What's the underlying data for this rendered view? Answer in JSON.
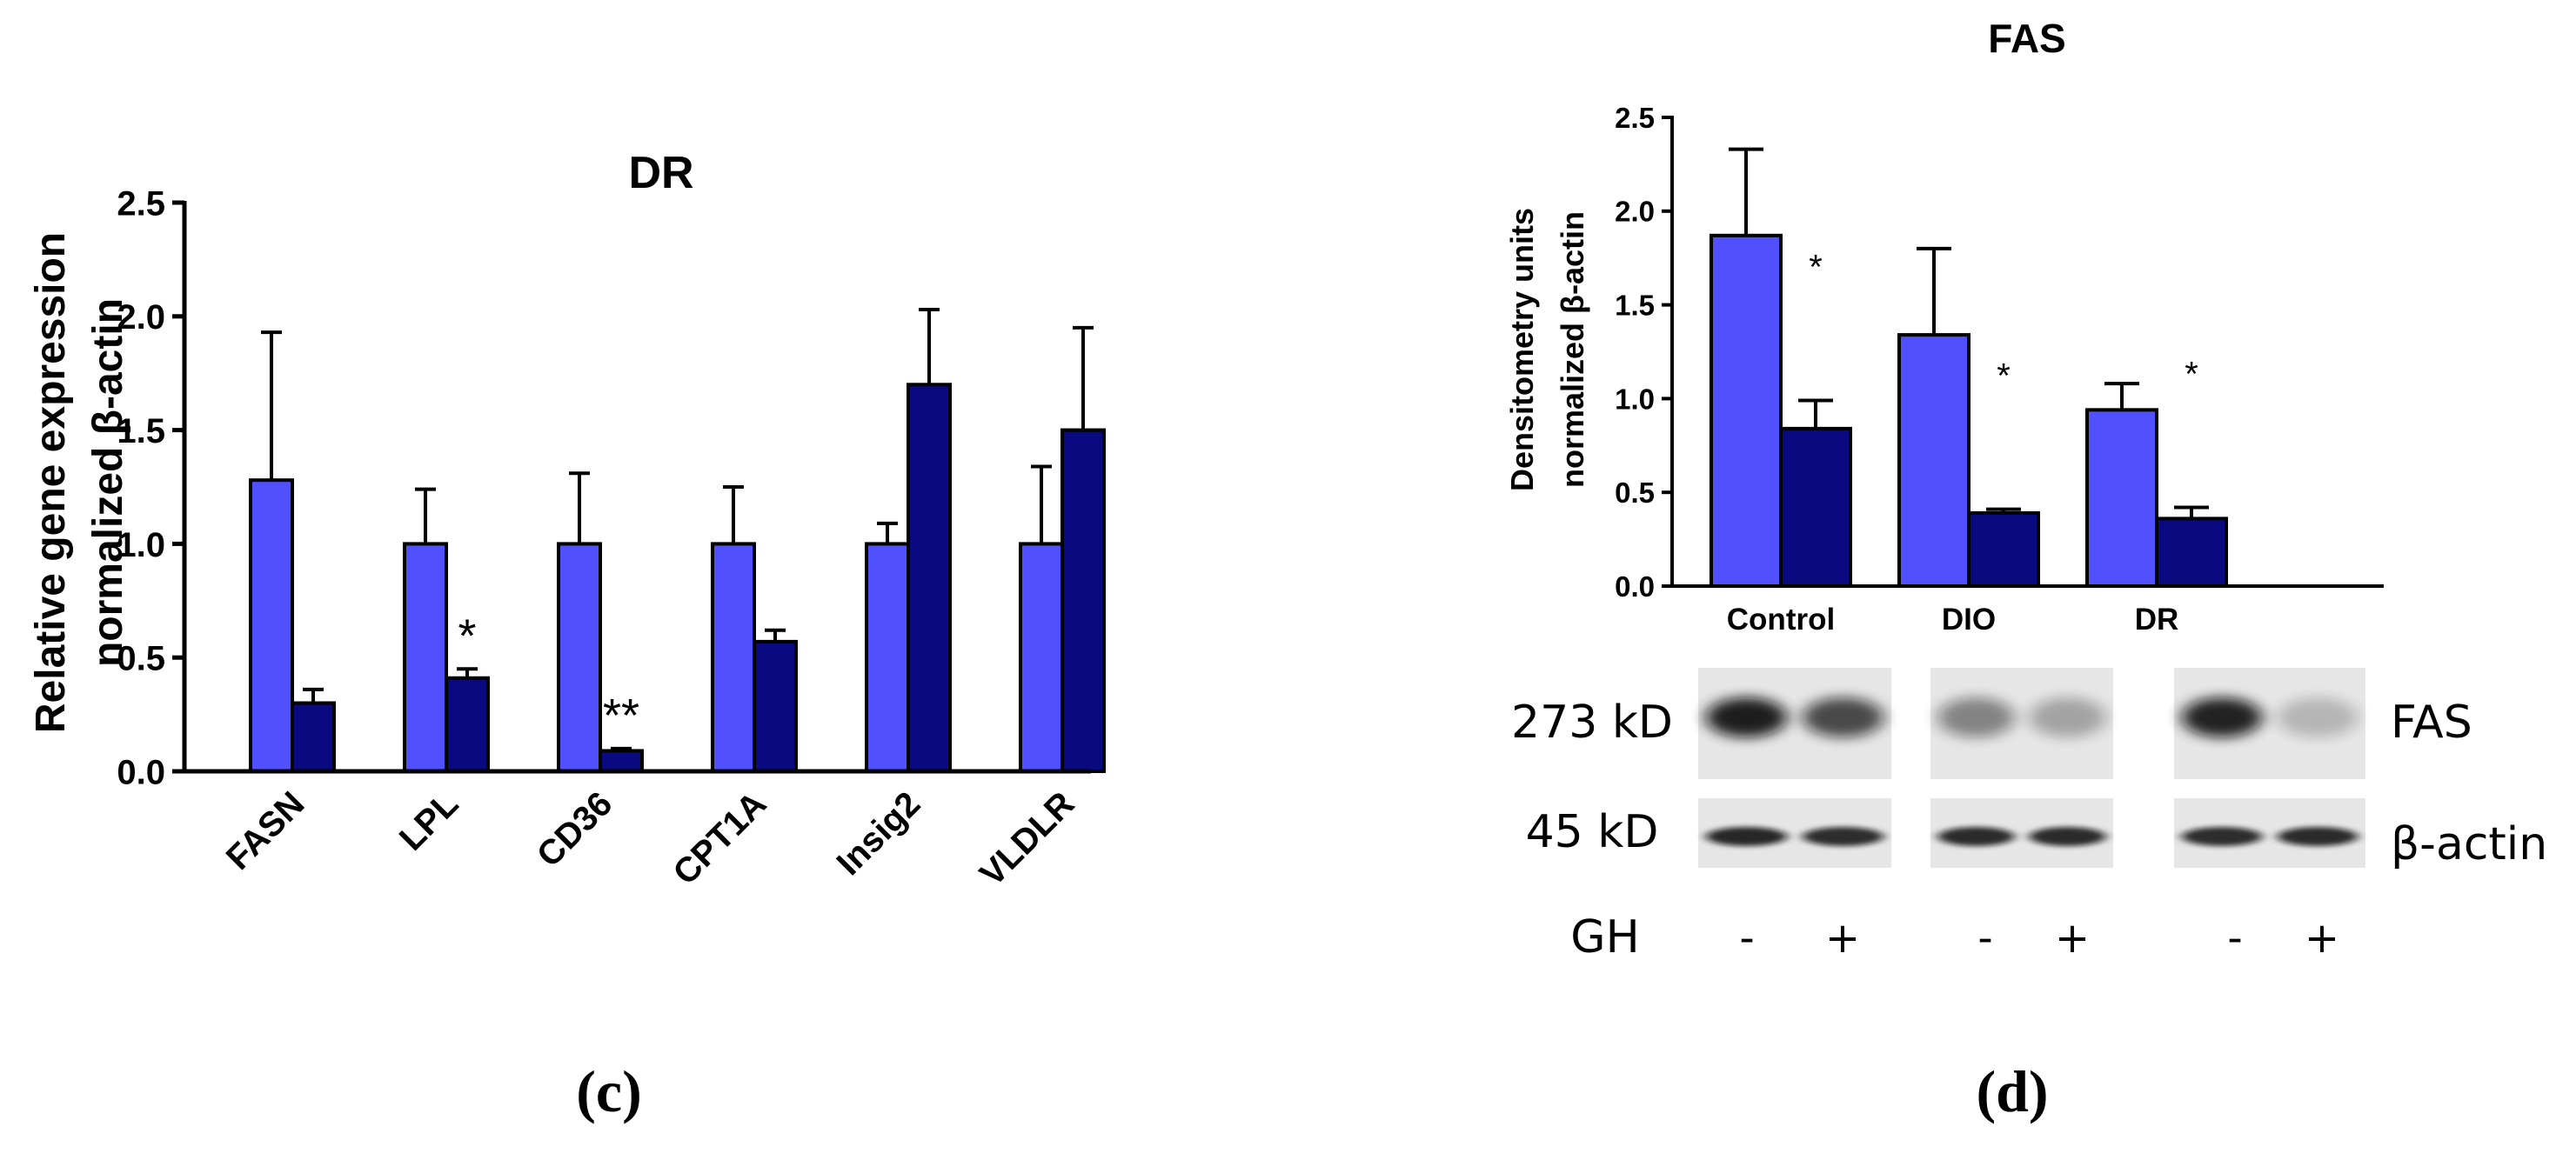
{
  "chart_data": [
    {
      "type": "bar",
      "title": "DR",
      "ylabel": "Relative gene expression",
      "ylabel2": "normalized β-actin",
      "ylim": [
        0,
        2.5
      ],
      "yticks": [
        "0.0",
        "0.5",
        "1.0",
        "1.5",
        "2.0",
        "2.5"
      ],
      "categories": [
        "FASN",
        "LPL",
        "CD36",
        "CPT1A",
        "Insig2",
        "VLDLR"
      ],
      "series": [
        {
          "name": "GH -",
          "color": "#5050ff",
          "values": [
            1.28,
            1.0,
            1.0,
            1.0,
            1.0,
            1.0
          ],
          "errors": [
            0.65,
            0.24,
            0.31,
            0.25,
            0.09,
            0.34
          ]
        },
        {
          "name": "GH +",
          "color": "#0a0a80",
          "values": [
            0.3,
            0.41,
            0.09,
            0.57,
            1.7,
            1.5
          ],
          "errors": [
            0.06,
            0.04,
            0.01,
            0.05,
            0.33,
            0.45
          ]
        }
      ],
      "annotations": [
        "",
        "*",
        "**",
        "",
        "",
        ""
      ],
      "panel_label": "(c)"
    },
    {
      "type": "bar",
      "title": "FAS",
      "ylabel": "Densitometry units",
      "ylabel2": "normalized β-actin",
      "ylim": [
        0,
        2.5
      ],
      "yticks": [
        "0.0",
        "0.5",
        "1.0",
        "1.5",
        "2.0",
        "2.5"
      ],
      "categories": [
        "Control",
        "DIO",
        "DR"
      ],
      "series": [
        {
          "name": "GH -",
          "color": "#5050ff",
          "values": [
            1.87,
            1.34,
            0.94
          ],
          "errors": [
            0.46,
            0.46,
            0.14
          ]
        },
        {
          "name": "GH +",
          "color": "#0a0a80",
          "values": [
            0.84,
            0.39,
            0.36
          ],
          "errors": [
            0.15,
            0.02,
            0.06
          ]
        }
      ],
      "annotations": [
        "*",
        "*",
        "*"
      ],
      "panel_label": "(d)"
    }
  ],
  "western_blot": {
    "bands": [
      {
        "size": "273 kD",
        "protein": "FAS",
        "intensities": [
          0.92,
          0.72,
          0.45,
          0.3,
          0.9,
          0.22
        ]
      },
      {
        "size": "45 kD",
        "protein": "β-actin",
        "intensities": [
          0.88,
          0.85,
          0.86,
          0.86,
          0.85,
          0.86
        ]
      }
    ],
    "treatment_label": "GH",
    "treatment_signs": [
      "-",
      "+",
      "-",
      "+",
      "-",
      "+"
    ]
  }
}
